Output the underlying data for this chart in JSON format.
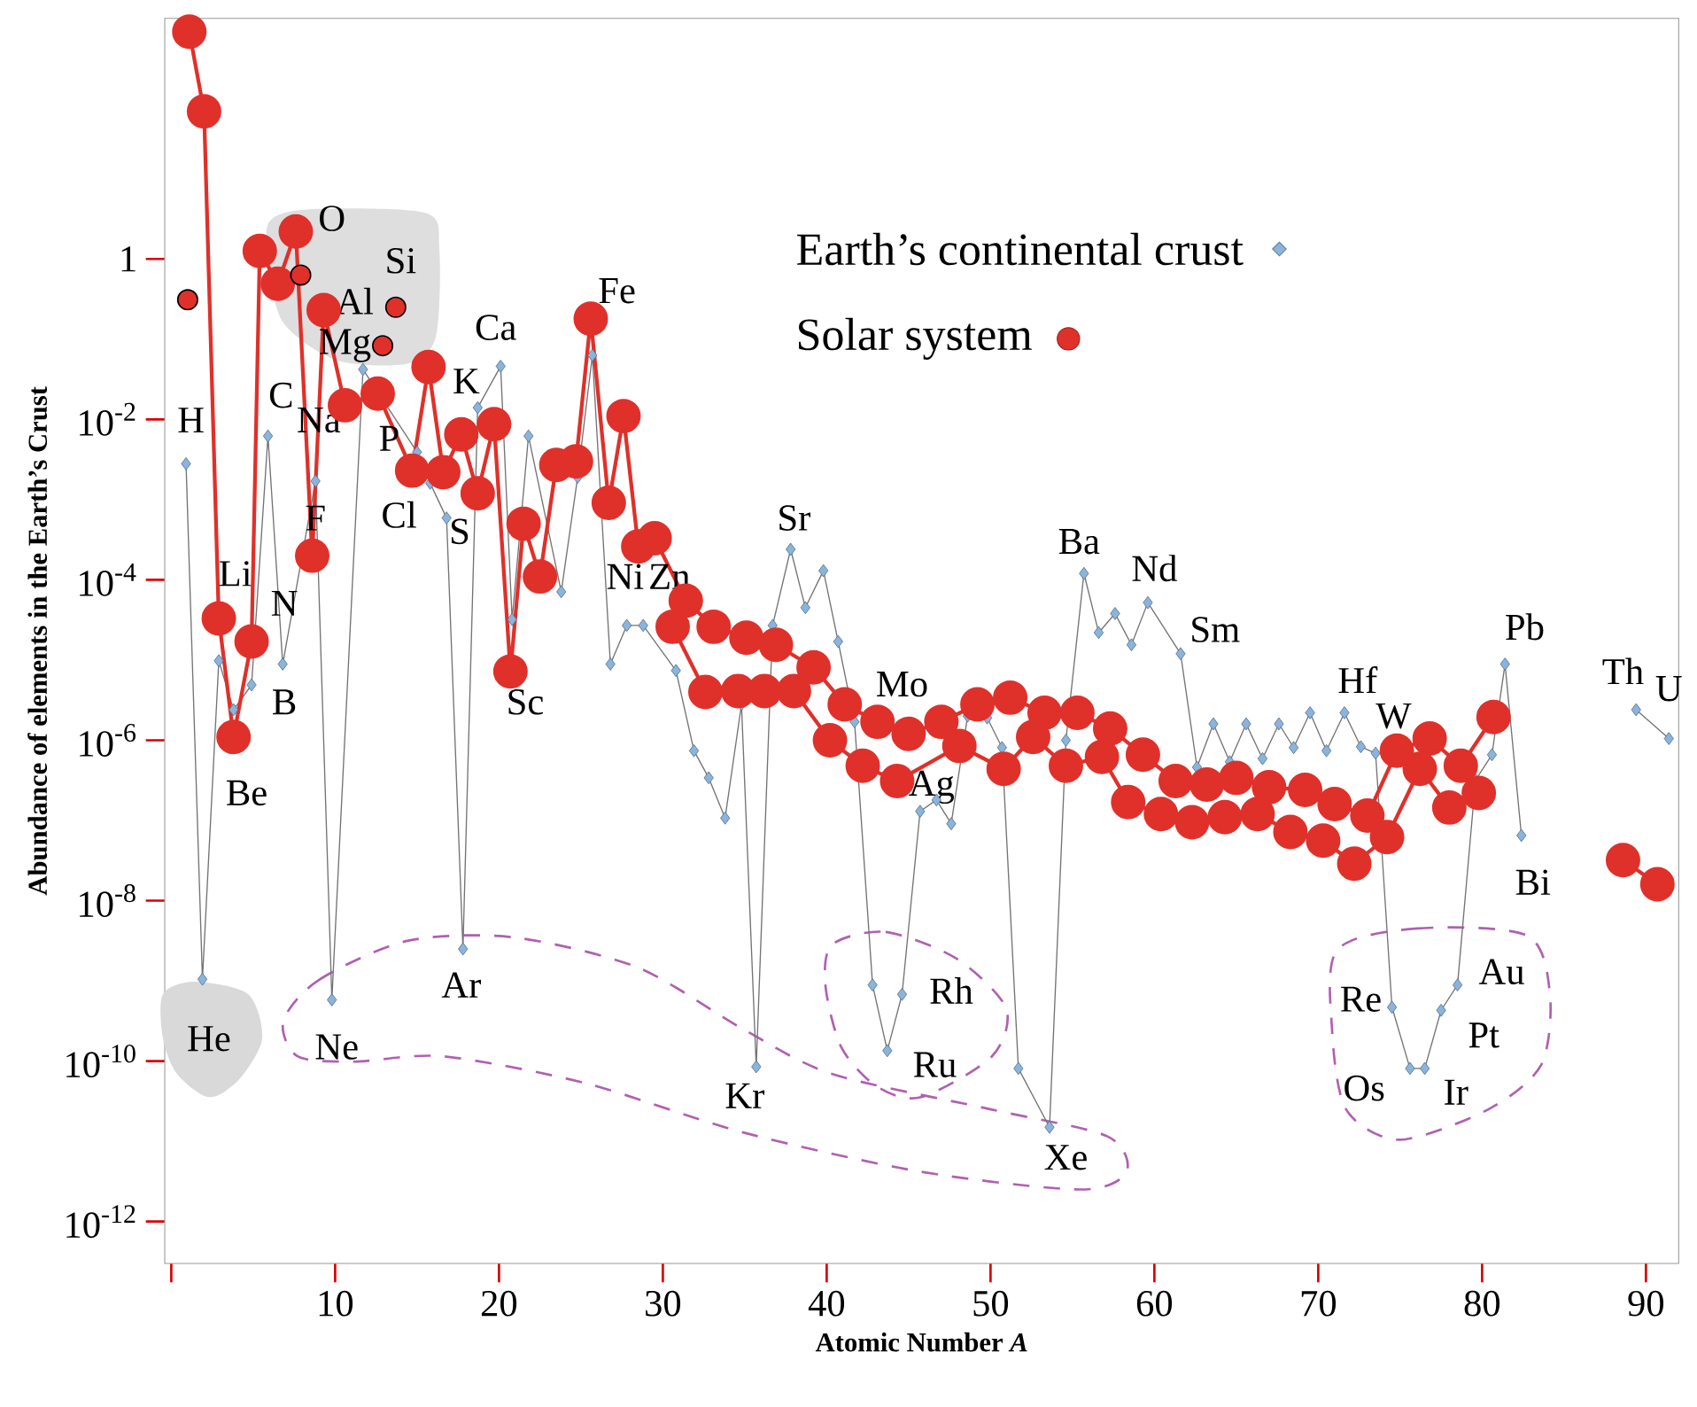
{
  "chart_data": {
    "type": "line",
    "xlabel": "Atomic Number *A*",
    "ylabel": "Abundance of elements in the Earth’s Crust",
    "log": true,
    "legend": "top right",
    "xlim": [
      -0.4,
      92
    ],
    "ylim": [
      3e-13,
      1000
    ],
    "xticks": [
      {
        "value": 0,
        "label": null
      },
      10,
      20,
      30,
      40,
      50,
      60,
      70,
      80,
      90
    ],
    "yticks": [
      {
        "value": 1e-12,
        "label": "10$^{-12}$"
      },
      {
        "value": 1e-10,
        "label": "10$^{-10}$"
      },
      {
        "value": 1e-08,
        "label": "10$^{-8}$"
      },
      {
        "value": 1e-06,
        "label": "10$^{-6}$"
      },
      {
        "value": 0.0001,
        "label": "10$^{-4}$"
      },
      {
        "value": 0.01,
        "label": "10$^{-2}$"
      },
      1
    ],
    "series": [
      {
        "name": "Earth’s continental crust",
        "type": "line",
        "marker": "diamond",
        "color": "#8ab4dc",
        "x": [
          0.9,
          1.9,
          2.9,
          3.8,
          4.9,
          5.9,
          6.8,
          8.8,
          9.8,
          11.7,
          15.0,
          15.8,
          16.8,
          17.8,
          18.7,
          20.1,
          20.8,
          21.8,
          23.8,
          24.8,
          25.7,
          26.8,
          27.8,
          28.8,
          30.8,
          31.9,
          32.8,
          33.8,
          34.8,
          35.7,
          36.7,
          37.8,
          38.7,
          39.8,
          40.7,
          41.7,
          42.8,
          43.7,
          44.6,
          45.7,
          46.7,
          47.6,
          48.6,
          49.8,
          50.7,
          51.7,
          53.6,
          54.6,
          55.7,
          56.6,
          57.6,
          58.6,
          59.6,
          61.6,
          62.6,
          63.6,
          64.6,
          65.6,
          66.6,
          67.6,
          68.5,
          69.5,
          70.5,
          71.6,
          72.6,
          73.5,
          74.5,
          75.6,
          76.5,
          77.5,
          78.5,
          79.6,
          80.6,
          81.4,
          82.4
        ],
        "values": [
          0.0028,
          1.05e-09,
          9.8e-06,
          2.4e-06,
          4.9e-06,
          0.0062,
          8.9e-06,
          0.0017,
          5.8e-10,
          0.042,
          0.0039,
          0.0016,
          0.00059,
          2.5e-09,
          0.014,
          0.046,
          3.2e-05,
          0.0062,
          7.1e-05,
          0.0019,
          0.063,
          8.9e-06,
          2.7e-05,
          2.7e-05,
          7.4e-06,
          7.4e-07,
          3.4e-07,
          1.07e-07,
          2.8e-06,
          8.5e-11,
          2.7e-05,
          0.00024,
          4.5e-05,
          0.00013,
          1.7e-05,
          1.7e-06,
          8.9e-10,
          1.35e-10,
          6.8e-10,
          1.3e-07,
          1.8e-07,
          9.1e-08,
          2e-06,
          1.9e-06,
          8.1e-07,
          8.1e-11,
          1.5e-11,
          1e-06,
          0.00012,
          2.2e-05,
          3.8e-05,
          1.55e-05,
          5.2e-05,
          1.2e-05,
          4.6e-07,
          1.6e-06,
          5.4e-07,
          1.6e-06,
          5.9e-07,
          1.6e-06,
          8.1e-07,
          2.2e-06,
          7.4e-07,
          2.2e-06,
          8.3e-07,
          6.9e-07,
          4.7e-10,
          8.1e-11,
          8.1e-11,
          4.3e-10,
          8.9e-10,
          3.2e-07,
          6.6e-07,
          8.9e-06,
          6.5e-08
        ]
      },
      {
        "type": "line",
        "marker": "diamond",
        "color": "#8ab4dc",
        "x": [
          89.4,
          91.4
        ],
        "values": [
          2.4e-06,
          1.05e-06
        ]
      },
      {
        "name": "Solar system",
        "type": "line",
        "marker": "circle",
        "color": "#e0302a",
        "x": [
          1.1,
          2.0,
          2.9,
          3.8,
          4.9,
          5.4,
          6.5,
          7.6,
          8.6,
          9.3,
          10.6,
          12.6,
          14.7,
          15.7,
          16.6,
          17.7,
          18.7,
          19.7,
          20.7,
          21.5,
          22.5,
          23.5,
          24.7,
          25.6,
          26.7,
          27.6,
          28.5,
          29.5,
          31.4,
          33.1,
          35.1,
          36.9,
          39.2,
          41.1,
          43.1,
          45.0,
          47.0,
          49.2,
          51.2,
          53.3,
          55.3,
          57.3,
          59.3,
          61.3,
          63.2,
          65.0,
          67.0,
          69.2,
          71.0,
          73.0,
          74.8,
          76.8,
          78.7,
          80.7
        ],
        "values": [
          680,
          69,
          3.3e-05,
          1.1e-06,
          1.7e-05,
          1.26,
          0.49,
          2.2,
          0.0002,
          0.23,
          0.015,
          0.021,
          0.0023,
          0.045,
          0.0022,
          0.0065,
          0.0012,
          0.0087,
          7.2e-06,
          0.0005,
          0.00011,
          0.0027,
          0.003,
          0.18,
          0.00091,
          0.011,
          0.00026,
          0.00033,
          5.5e-05,
          2.6e-05,
          1.9e-05,
          1.55e-05,
          8.1e-06,
          2.8e-06,
          1.7e-06,
          1.2e-06,
          1.7e-06,
          2.8e-06,
          3.4e-06,
          2.2e-06,
          2.2e-06,
          1.4e-06,
          6.6e-07,
          3.1e-07,
          2.8e-07,
          3.4e-07,
          2.6e-07,
          2.4e-07,
          1.6e-07,
          1.15e-07,
          7.4e-07,
          1.05e-06,
          4.8e-07,
          1.95e-06
        ]
      },
      {
        "type": "line",
        "marker": "circle",
        "color": "#e0302a",
        "x": [
          30.6,
          32.6,
          34.6,
          36.2,
          38.0,
          40.2,
          42.2,
          44.3,
          48.1,
          50.8,
          52.6,
          54.6,
          56.8,
          58.4,
          60.4,
          62.3,
          64.3,
          66.3,
          68.3,
          70.3,
          72.2,
          74.2,
          76.2,
          78.0,
          79.8
        ],
        "values": [
          2.6e-05,
          4e-06,
          4.1e-06,
          4.1e-06,
          4.1e-06,
          1e-06,
          4.8e-07,
          3.1e-07,
          8.5e-07,
          4.4e-07,
          1.1e-06,
          4.8e-07,
          6.2e-07,
          1.7e-07,
          1.2e-07,
          9.5e-08,
          1.1e-07,
          1.2e-07,
          7.2e-08,
          5.6e-08,
          2.9e-08,
          6.2e-08,
          4.4e-07,
          1.45e-07,
          2.2e-07
        ]
      },
      {
        "type": "line",
        "marker": "circle",
        "color": "#e0302a",
        "x": [
          88.6,
          90.7
        ],
        "values": [
          3.2e-08,
          1.6e-08
        ]
      },
      {
        "type": "scatter",
        "marker": "circle",
        "color": "#e0302a",
        "x": [
          1.0,
          7.9,
          12.9,
          13.7
        ],
        "values": [
          0.31,
          0.63,
          0.083,
          0.25
        ]
      }
    ],
    "annotations": [
      "H",
      "He",
      "Li",
      "Be",
      "B",
      "C",
      "N",
      "O",
      "F",
      "Ne",
      "Na",
      "Mg",
      "Al",
      "Si",
      "P",
      "S",
      "Cl",
      "Ar",
      "K",
      "Ca",
      "Sc",
      "Fe",
      "Ni",
      "Zn",
      "Kr",
      "Sr",
      "Mo",
      "Ru",
      "Rh",
      "Ag",
      "Xe",
      "Ba",
      "Nd",
      "Sm",
      "Hf",
      "W",
      "Re",
      "Os",
      "Ir",
      "Pt",
      "Au",
      "Pb",
      "Bi",
      "Th",
      "U"
    ]
  }
}
